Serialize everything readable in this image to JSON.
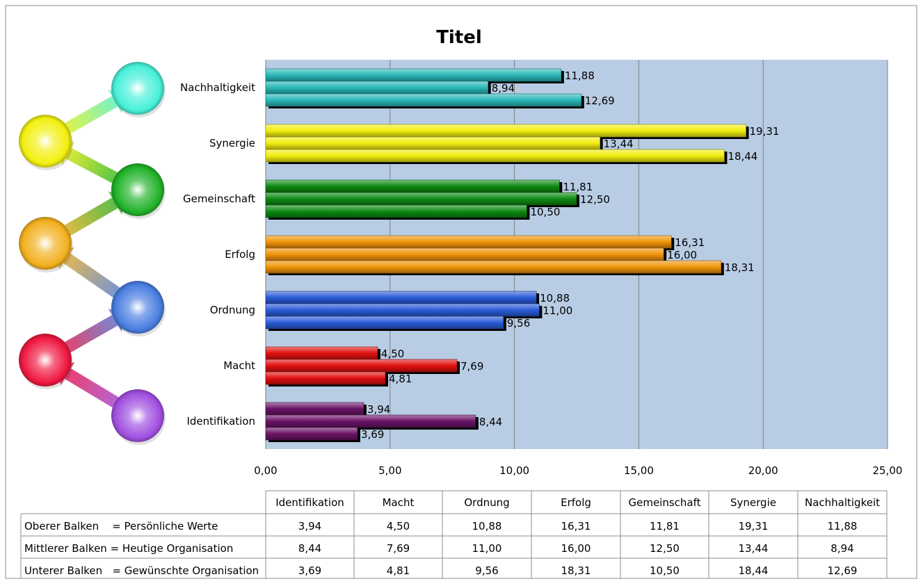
{
  "chart_data": {
    "type": "bar",
    "orientation": "horizontal",
    "title": "Titel",
    "categories": [
      "Identifikation",
      "Macht",
      "Ordnung",
      "Erfolg",
      "Gemeinschaft",
      "Synergie",
      "Nachhaltigkeit"
    ],
    "series": [
      {
        "values": [
          3.94,
          4.5,
          10.88,
          16.31,
          11.81,
          19.31,
          11.88
        ]
      },
      {
        "values": [
          8.44,
          7.69,
          11.0,
          16.0,
          12.5,
          13.44,
          8.94
        ]
      },
      {
        "values": [
          3.69,
          4.81,
          9.56,
          18.31,
          10.5,
          18.44,
          12.69
        ]
      }
    ],
    "xlim": [
      0,
      25
    ],
    "xticks": [
      "0,00",
      "5,00",
      "10,00",
      "15,00",
      "20,00",
      "25,00"
    ],
    "grid": true,
    "category_colors": [
      "#6a1466",
      "#e01010",
      "#2a5cd8",
      "#f0940a",
      "#0e8a12",
      "#f2ee10",
      "#2ab8b8"
    ],
    "background_color": "#b8cce4",
    "data_table": {
      "row_labels": [
        "Oberer Balken    = Persönliche Werte",
        "Mittlerer Balken = Heutige Organisation",
        "Unterer Balken   = Gewünschte Organisation"
      ],
      "rows": [
        [
          "3,94",
          "4,50",
          "10,88",
          "16,31",
          "11,81",
          "19,31",
          "11,88"
        ],
        [
          "8,44",
          "7,69",
          "11,00",
          "16,00",
          "12,50",
          "13,44",
          "8,94"
        ],
        [
          "3,69",
          "4,81",
          "9,56",
          "18,31",
          "10,50",
          "18,44",
          "12,69"
        ]
      ]
    }
  },
  "decor": {
    "sphere_colors": [
      "#48f0d8",
      "#f2f010",
      "#22b22a",
      "#f2b020",
      "#4a7ee0",
      "#f01840",
      "#a050e0"
    ]
  }
}
